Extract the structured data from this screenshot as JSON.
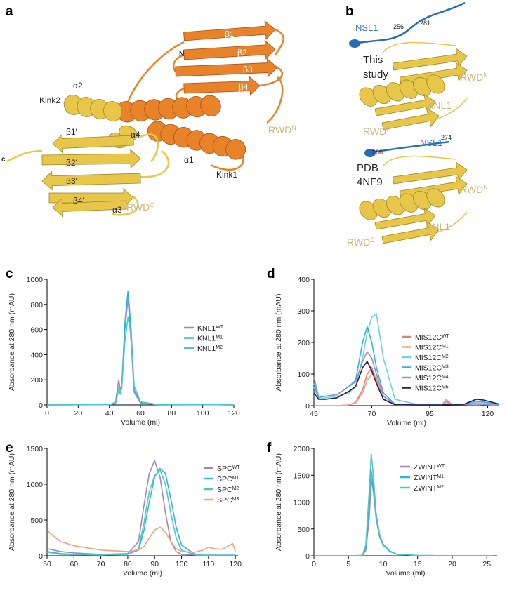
{
  "panel_a": {
    "letter": "a",
    "labels": [
      "N",
      "β1",
      "β2",
      "β3",
      "β4",
      "α2",
      "Kink2",
      "α1",
      "Kink1",
      "c",
      "β1'",
      "α4",
      "β2'",
      "β3'",
      "β4'",
      "α3"
    ],
    "domains": [
      {
        "text": "RWD",
        "sup": "N"
      },
      {
        "text": "RWD",
        "sup": "C"
      }
    ]
  },
  "panel_b": {
    "letter": "b",
    "top": {
      "peptide": "NSL1",
      "residues": [
        "256",
        "281"
      ],
      "source": [
        "This",
        "study"
      ],
      "protein": "KNL1",
      "domains": [
        {
          "text": "RWD",
          "sup": "N"
        },
        {
          "text": "RWD",
          "sup": "C"
        }
      ]
    },
    "bottom": {
      "peptide": "NSL1",
      "residues": [
        "274",
        "266"
      ],
      "source": [
        "PDB",
        "4NF9"
      ],
      "protein": "KNL1",
      "domains": [
        {
          "text": "RWD",
          "sup": "N"
        },
        {
          "text": "RWD",
          "sup": "C"
        }
      ]
    }
  },
  "chart_data": [
    {
      "type": "line",
      "panel": "c",
      "x_label": "Volume (ml)",
      "y_label": "Absorbance at 280 nm (mAU)",
      "x": [
        0,
        40,
        44,
        46,
        47,
        48,
        50,
        52,
        54,
        56,
        60,
        70,
        100,
        120
      ],
      "xlim": [
        0,
        120
      ],
      "xticks": [
        0,
        20,
        40,
        60,
        80,
        100,
        120
      ],
      "ylim": [
        0,
        1000
      ],
      "yticks": [
        0,
        200,
        400,
        600,
        800,
        1000
      ],
      "series": [
        {
          "name": "KNL1",
          "sup": "WT",
          "color": "#9b86c3",
          "values": [
            0,
            2,
            20,
            200,
            120,
            160,
            600,
            850,
            500,
            100,
            15,
            3,
            2,
            0
          ]
        },
        {
          "name": "KNL1",
          "sup": "M1",
          "color": "#2bb8e0",
          "values": [
            0,
            2,
            10,
            120,
            90,
            130,
            650,
            910,
            600,
            120,
            20,
            5,
            3,
            0
          ]
        },
        {
          "name": "KNL1",
          "sup": "M2",
          "color": "#4fc8c0",
          "values": [
            0,
            2,
            10,
            130,
            100,
            140,
            500,
            700,
            550,
            150,
            25,
            5,
            3,
            0
          ]
        }
      ]
    },
    {
      "type": "line",
      "panel": "d",
      "x_label": "Volume (ml)",
      "y_label": "Absorbance at 280 nm (mAU)",
      "x": [
        45,
        47,
        50,
        55,
        60,
        63,
        66,
        68,
        70,
        72,
        75,
        80,
        90,
        100,
        102,
        105,
        110,
        115,
        118,
        125
      ],
      "xlim": [
        45,
        125
      ],
      "xticks": [
        45,
        70,
        95,
        120
      ],
      "ylim": [
        0,
        400
      ],
      "yticks": [
        0,
        100,
        200,
        300,
        400
      ],
      "series": [
        {
          "name": "MIS12C",
          "sup": "WT",
          "color": "#e87a78",
          "values": [
            0,
            0,
            0,
            0,
            2,
            10,
            50,
            100,
            120,
            80,
            20,
            2,
            0,
            0,
            15,
            2,
            3,
            8,
            5,
            0
          ]
        },
        {
          "name": "MIS12C",
          "sup": "M1",
          "color": "#f4a486",
          "values": [
            0,
            0,
            0,
            0,
            2,
            8,
            40,
            80,
            100,
            90,
            30,
            3,
            0,
            0,
            20,
            3,
            5,
            10,
            6,
            0
          ]
        },
        {
          "name": "MIS12C",
          "sup": "M2",
          "color": "#6fd0e6",
          "values": [
            60,
            20,
            25,
            30,
            40,
            60,
            150,
            230,
            280,
            290,
            150,
            20,
            3,
            2,
            10,
            3,
            3,
            12,
            10,
            2
          ]
        },
        {
          "name": "MIS12C",
          "sup": "M3",
          "color": "#2bb8e0",
          "values": [
            70,
            25,
            30,
            35,
            60,
            80,
            200,
            250,
            200,
            120,
            40,
            5,
            2,
            2,
            5,
            3,
            3,
            15,
            12,
            3
          ]
        },
        {
          "name": "MIS12C",
          "sup": "M4",
          "color": "#a08bc6",
          "values": [
            90,
            30,
            30,
            35,
            60,
            75,
            140,
            170,
            150,
            100,
            30,
            5,
            2,
            2,
            3,
            2,
            3,
            5,
            3,
            0
          ]
        },
        {
          "name": "MIS12C",
          "sup": "M5",
          "color": "#2a1e4e",
          "values": [
            40,
            20,
            20,
            25,
            45,
            60,
            120,
            140,
            110,
            70,
            20,
            3,
            2,
            2,
            3,
            2,
            5,
            20,
            18,
            5
          ]
        }
      ]
    },
    {
      "type": "line",
      "panel": "e",
      "x_label": "Volume (ml)",
      "y_label": "Absorbance at 280 nm (mAU)",
      "x": [
        50,
        55,
        60,
        70,
        80,
        84,
        86,
        88,
        90,
        92,
        94,
        96,
        98,
        100,
        105,
        108,
        110,
        112,
        115,
        118,
        119,
        120
      ],
      "xlim": [
        50,
        121
      ],
      "xticks": [
        50,
        60,
        70,
        80,
        90,
        100,
        110,
        120
      ],
      "ylim": [
        0,
        1500
      ],
      "yticks": [
        0,
        500,
        1000,
        1500
      ],
      "series": [
        {
          "name": "SPC",
          "sup": "WT",
          "color": "#9b86c3",
          "values": [
            100,
            60,
            40,
            20,
            30,
            200,
            700,
            1150,
            1330,
            1100,
            600,
            200,
            60,
            20,
            10,
            5,
            5,
            5,
            5,
            5,
            5,
            5
          ]
        },
        {
          "name": "SPC",
          "sup": "M1",
          "color": "#2bb8e0",
          "values": [
            60,
            30,
            20,
            10,
            20,
            80,
            350,
            750,
            1100,
            1220,
            1150,
            800,
            400,
            150,
            20,
            10,
            10,
            10,
            10,
            10,
            10,
            10
          ]
        },
        {
          "name": "SPC",
          "sup": "M2",
          "color": "#4fc8c0",
          "values": [
            50,
            20,
            15,
            10,
            20,
            100,
            450,
            900,
            1120,
            1200,
            1000,
            600,
            250,
            80,
            15,
            8,
            8,
            8,
            8,
            8,
            8,
            8
          ]
        },
        {
          "name": "SPC",
          "sup": "M3",
          "color": "#f5a07a",
          "values": [
            350,
            200,
            140,
            80,
            60,
            80,
            130,
            250,
            360,
            400,
            330,
            200,
            100,
            60,
            50,
            80,
            120,
            100,
            90,
            150,
            170,
            60
          ]
        }
      ]
    },
    {
      "type": "line",
      "panel": "f",
      "x_label": "Volume (ml)",
      "y_label": "Absorbance at 280 nm (mAU)",
      "x": [
        0,
        5,
        7,
        7.5,
        8,
        8.3,
        8.6,
        9,
        9.5,
        10,
        11,
        12,
        15,
        20,
        26
      ],
      "xlim": [
        0,
        26.5
      ],
      "xticks": [
        0,
        5,
        10,
        15,
        20,
        25
      ],
      "ylim": [
        0,
        2000
      ],
      "yticks": [
        0,
        500,
        1000,
        1500,
        2000
      ],
      "series": [
        {
          "name": "ZWINT",
          "sup": "WT",
          "color": "#9b86c3",
          "values": [
            0,
            0,
            5,
            100,
            700,
            1430,
            1200,
            700,
            350,
            200,
            80,
            30,
            5,
            0,
            0
          ]
        },
        {
          "name": "ZWINT",
          "sup": "M1",
          "color": "#2bb8e0",
          "values": [
            0,
            0,
            5,
            150,
            900,
            1600,
            1300,
            750,
            380,
            200,
            80,
            30,
            5,
            0,
            0
          ]
        },
        {
          "name": "ZWINT",
          "sup": "M2",
          "color": "#4fc8c0",
          "values": [
            0,
            0,
            5,
            200,
            1200,
            1900,
            1500,
            800,
            400,
            220,
            90,
            30,
            5,
            0,
            0
          ]
        }
      ]
    }
  ]
}
